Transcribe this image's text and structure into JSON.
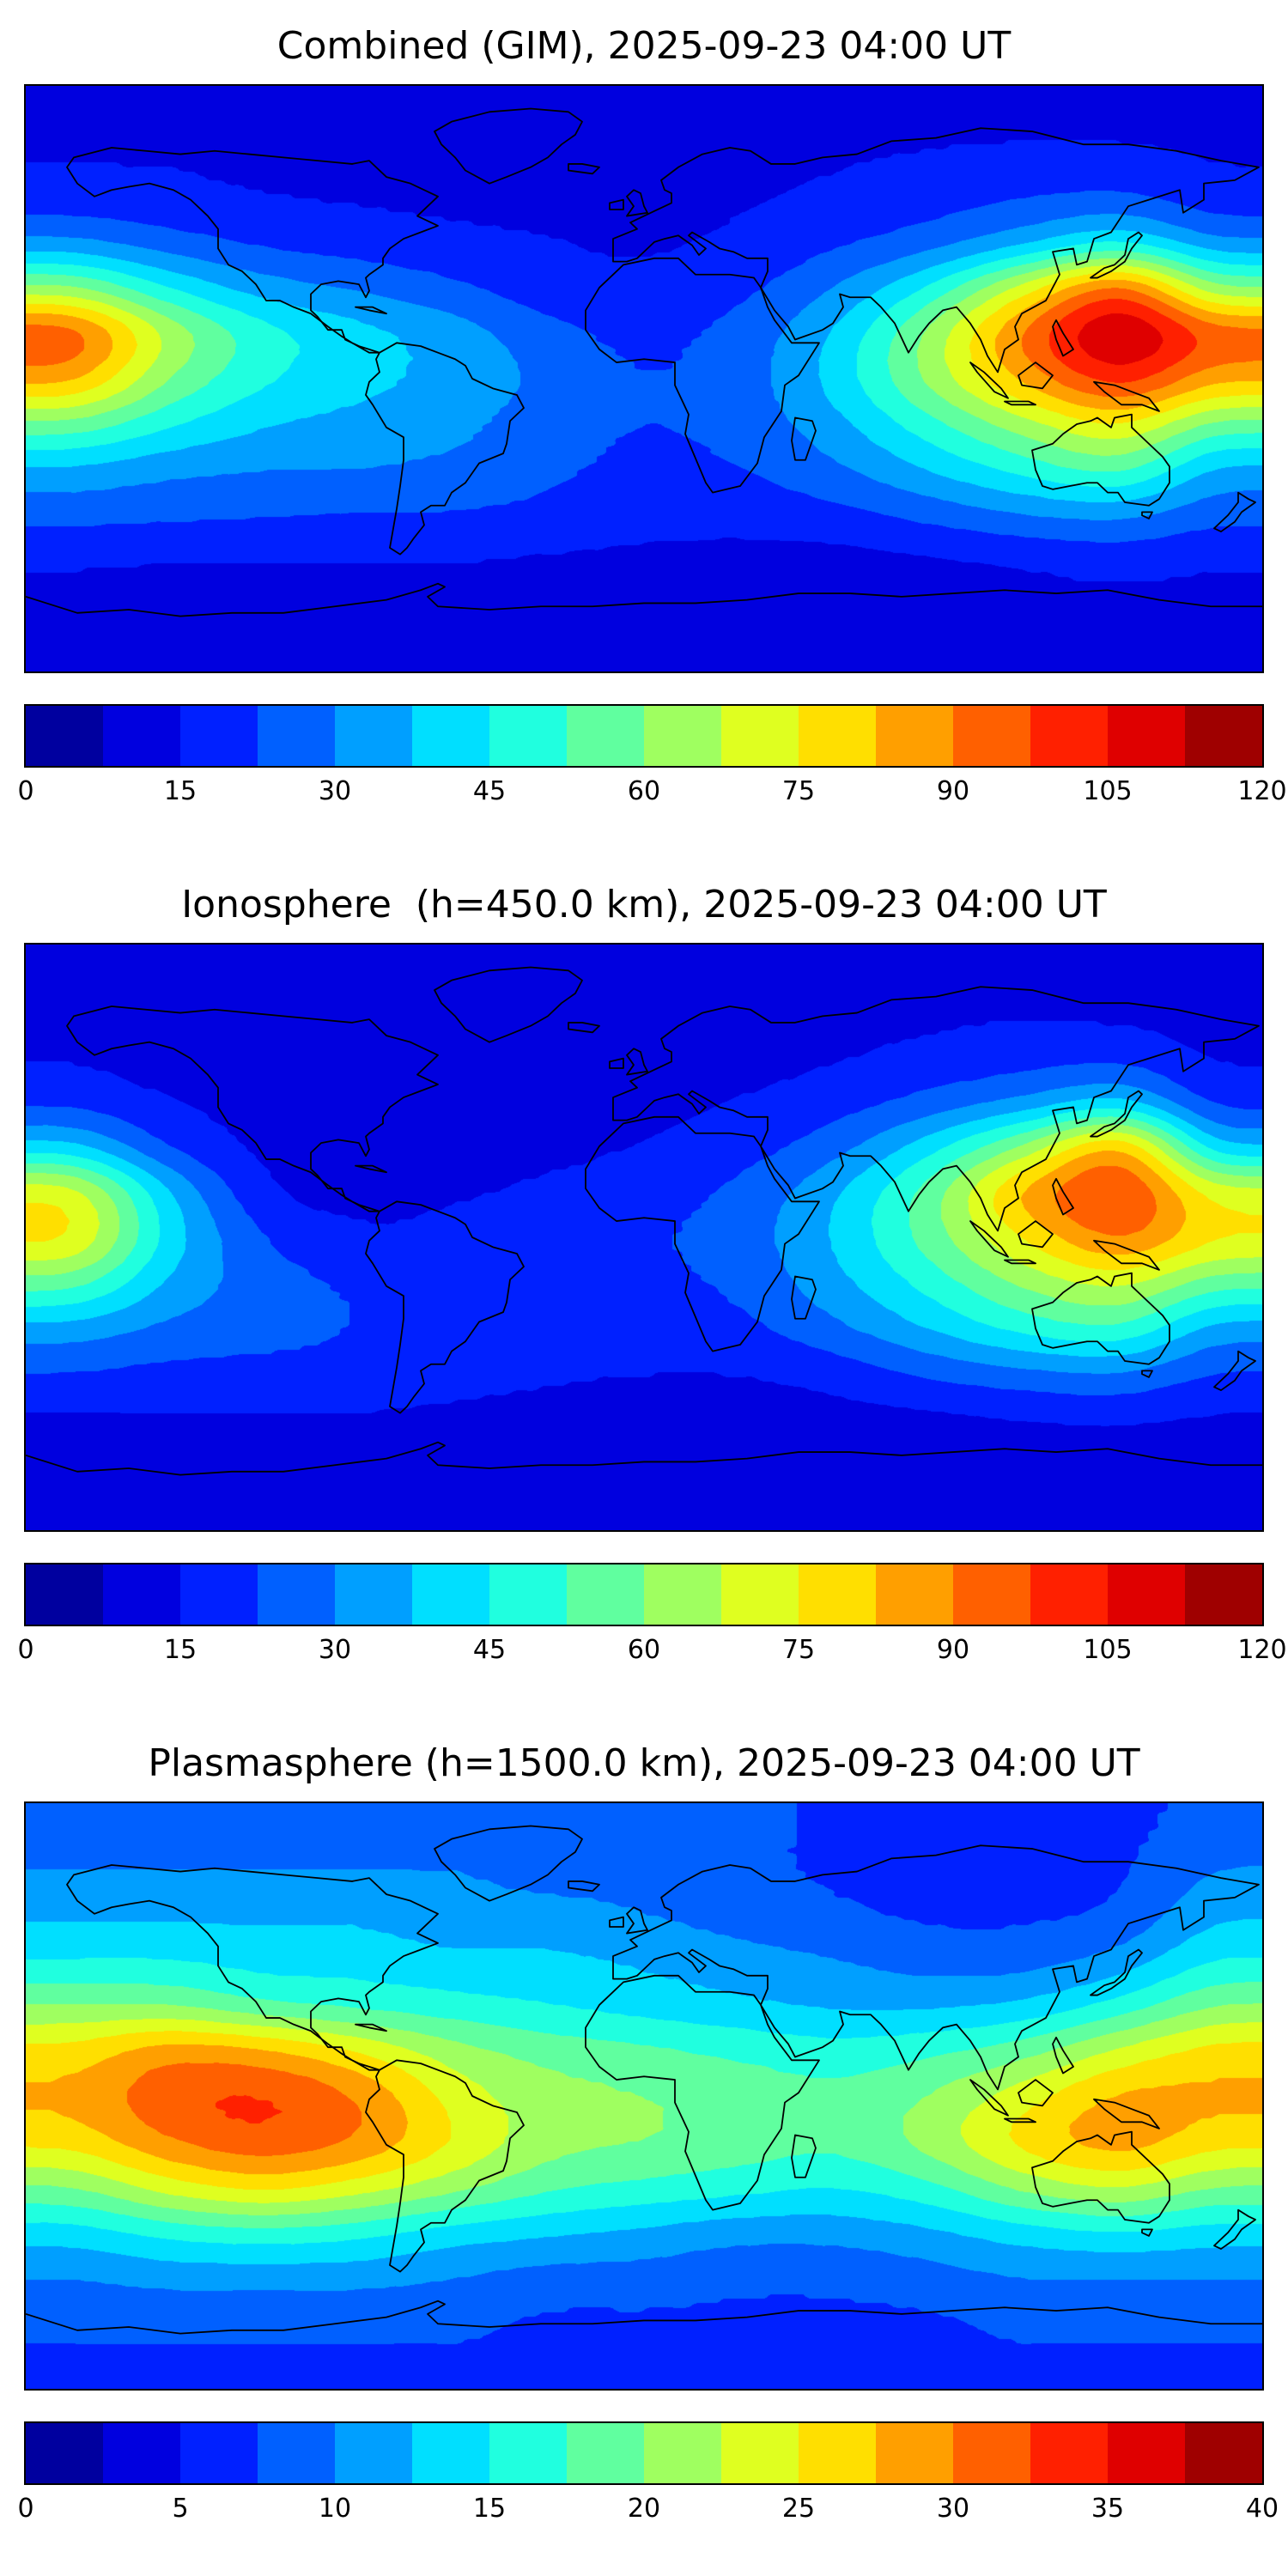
{
  "figure": {
    "background": "#ffffff",
    "coastline_color": "#000000",
    "text_color": "#000000",
    "colormap": "jet"
  },
  "chart_data": [
    {
      "type": "heatmap",
      "title": "Combined (GIM), 2025-09-23 04:00 UT",
      "datetime_ut": "2025-09-23 04:00",
      "layer": "Combined (GIM)",
      "projection": "equirectangular",
      "colormap": "jet",
      "vmin": 0,
      "vmax": 120,
      "contour_levels": 16,
      "colorbar_ticks": [
        0,
        15,
        30,
        45,
        60,
        75,
        90,
        105,
        120
      ],
      "lon": [
        -180,
        -150,
        -120,
        -90,
        -60,
        -30,
        0,
        30,
        60,
        90,
        120,
        150,
        180
      ],
      "lat": [
        90,
        75,
        60,
        45,
        30,
        15,
        0,
        -15,
        -30,
        -45,
        -60,
        -75,
        -90
      ],
      "values": [
        [
          12,
          12,
          12,
          12,
          12,
          12,
          12,
          12,
          12,
          12,
          12,
          12,
          12
        ],
        [
          14,
          14,
          13,
          12,
          12,
          12,
          12,
          13,
          14,
          15,
          16,
          16,
          14
        ],
        [
          18,
          17,
          15,
          14,
          13,
          13,
          13,
          14,
          16,
          19,
          22,
          24,
          18
        ],
        [
          32,
          26,
          21,
          19,
          17,
          15,
          14,
          16,
          21,
          27,
          36,
          46,
          32
        ],
        [
          62,
          45,
          34,
          29,
          24,
          18,
          16,
          20,
          30,
          46,
          72,
          95,
          62
        ],
        [
          95,
          66,
          48,
          40,
          34,
          25,
          20,
          25,
          38,
          62,
          92,
          115,
          95
        ],
        [
          85,
          60,
          46,
          40,
          35,
          28,
          22,
          26,
          40,
          62,
          85,
          102,
          85
        ],
        [
          58,
          46,
          38,
          35,
          32,
          26,
          22,
          25,
          35,
          50,
          65,
          76,
          58
        ],
        [
          36,
          32,
          30,
          30,
          28,
          24,
          20,
          22,
          28,
          38,
          48,
          55,
          36
        ],
        [
          25,
          24,
          23,
          22,
          22,
          20,
          18,
          18,
          20,
          25,
          30,
          32,
          25
        ],
        [
          16,
          15,
          15,
          15,
          15,
          14,
          13,
          12,
          12,
          14,
          16,
          18,
          16
        ],
        [
          12,
          12,
          12,
          12,
          12,
          11,
          10,
          9,
          9,
          10,
          12,
          13,
          12
        ],
        [
          10,
          10,
          10,
          10,
          10,
          10,
          10,
          10,
          10,
          10,
          10,
          10,
          10
        ]
      ]
    },
    {
      "type": "heatmap",
      "title": "Ionosphere  (h=450.0 km), 2025-09-23 04:00 UT",
      "datetime_ut": "2025-09-23 04:00",
      "layer": "Ionosphere",
      "height_km": 450.0,
      "projection": "equirectangular",
      "colormap": "jet",
      "vmin": 0,
      "vmax": 120,
      "contour_levels": 16,
      "colorbar_ticks": [
        0,
        15,
        30,
        45,
        60,
        75,
        90,
        105,
        120
      ],
      "lon": [
        -180,
        -150,
        -120,
        -90,
        -60,
        -30,
        0,
        30,
        60,
        90,
        120,
        150,
        180
      ],
      "lat": [
        90,
        75,
        60,
        45,
        30,
        15,
        0,
        -15,
        -30,
        -45,
        -60,
        -75,
        -90
      ],
      "values": [
        [
          10,
          10,
          10,
          10,
          10,
          10,
          10,
          10,
          10,
          10,
          10,
          10,
          10
        ],
        [
          12,
          11,
          10,
          10,
          10,
          10,
          10,
          11,
          12,
          13,
          14,
          13,
          12
        ],
        [
          14,
          12,
          11,
          11,
          11,
          11,
          11,
          12,
          14,
          17,
          19,
          20,
          14
        ],
        [
          20,
          15,
          12,
          12,
          12,
          12,
          13,
          15,
          19,
          25,
          32,
          40,
          20
        ],
        [
          40,
          22,
          13,
          11,
          12,
          13,
          15,
          19,
          27,
          42,
          62,
          85,
          40
        ],
        [
          72,
          38,
          16,
          12,
          14,
          16,
          19,
          24,
          36,
          56,
          85,
          100,
          72
        ],
        [
          76,
          42,
          22,
          16,
          17,
          18,
          21,
          26,
          38,
          56,
          76,
          92,
          76
        ],
        [
          56,
          36,
          26,
          21,
          20,
          20,
          20,
          24,
          35,
          48,
          62,
          70,
          56
        ],
        [
          35,
          28,
          25,
          22,
          22,
          20,
          18,
          20,
          28,
          38,
          48,
          52,
          35
        ],
        [
          22,
          20,
          20,
          20,
          18,
          16,
          15,
          15,
          18,
          24,
          28,
          30,
          22
        ],
        [
          14,
          14,
          14,
          14,
          13,
          12,
          11,
          11,
          12,
          13,
          15,
          16,
          14
        ],
        [
          11,
          11,
          11,
          11,
          11,
          10,
          10,
          9,
          9,
          10,
          11,
          11,
          11
        ],
        [
          9,
          9,
          9,
          9,
          9,
          9,
          9,
          9,
          9,
          9,
          9,
          9,
          9
        ]
      ]
    },
    {
      "type": "heatmap",
      "title": "Plasmasphere (h=1500.0 km), 2025-09-23 04:00 UT",
      "datetime_ut": "2025-09-23 04:00",
      "layer": "Plasmasphere",
      "height_km": 1500.0,
      "projection": "equirectangular",
      "colormap": "jet",
      "vmin": 0,
      "vmax": 40,
      "contour_levels": 16,
      "colorbar_ticks": [
        0,
        5,
        10,
        15,
        20,
        25,
        30,
        35,
        40
      ],
      "lon": [
        -180,
        -150,
        -120,
        -90,
        -60,
        -30,
        0,
        30,
        60,
        90,
        120,
        150,
        180
      ],
      "lat": [
        90,
        75,
        60,
        45,
        30,
        15,
        0,
        -15,
        -30,
        -45,
        -60,
        -75,
        -90
      ],
      "values": [
        [
          8,
          8,
          8,
          8,
          8,
          8,
          8,
          8,
          7,
          7,
          7,
          7,
          8
        ],
        [
          10,
          10,
          10,
          10,
          10,
          9,
          9,
          8,
          7,
          6,
          6,
          7,
          10
        ],
        [
          12,
          12,
          12,
          12,
          11,
          11,
          10,
          9,
          8,
          7,
          7,
          8,
          12
        ],
        [
          15,
          15,
          14,
          14,
          13,
          13,
          12,
          11,
          10,
          9,
          9,
          11,
          15
        ],
        [
          20,
          20,
          18,
          17,
          16,
          15,
          14,
          13,
          12,
          12,
          13,
          16,
          20
        ],
        [
          26,
          29,
          28,
          25,
          21,
          19,
          18,
          17,
          16,
          17,
          19,
          23,
          26
        ],
        [
          28,
          32,
          33,
          30,
          24,
          21,
          20,
          19,
          18,
          20,
          24,
          28,
          28
        ],
        [
          26,
          30,
          32,
          30,
          25,
          21,
          20,
          19,
          18,
          21,
          26,
          29,
          26
        ],
        [
          20,
          24,
          26,
          24,
          21,
          18,
          17,
          16,
          15,
          17,
          21,
          23,
          20
        ],
        [
          14,
          16,
          17,
          16,
          14,
          13,
          12,
          11,
          11,
          12,
          14,
          15,
          14
        ],
        [
          10,
          11,
          11,
          11,
          10,
          9,
          9,
          8,
          8,
          9,
          10,
          10,
          10
        ],
        [
          8,
          8,
          8,
          8,
          8,
          7,
          7,
          7,
          7,
          7,
          8,
          8,
          8
        ],
        [
          7,
          7,
          7,
          7,
          7,
          7,
          7,
          7,
          7,
          7,
          7,
          7,
          7
        ]
      ]
    }
  ]
}
